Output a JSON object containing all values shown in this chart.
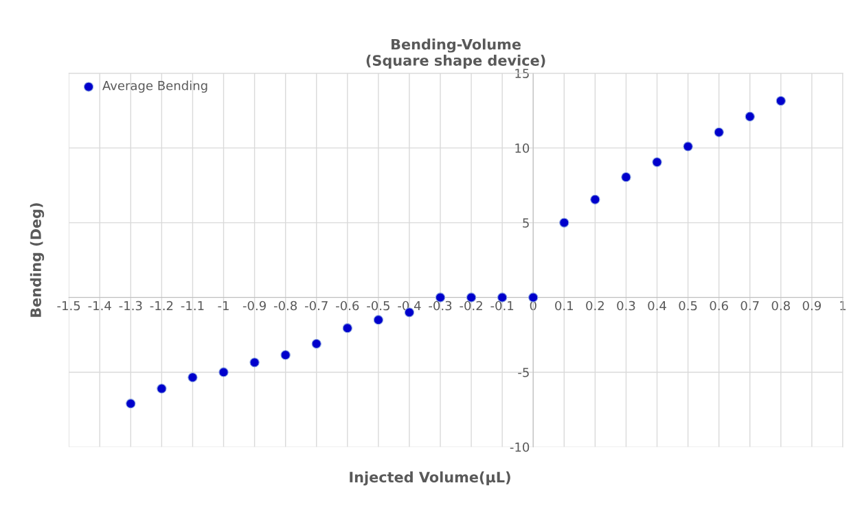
{
  "chart_data": {
    "type": "scatter",
    "title": "Bending-Volume\n(Square shape device)",
    "xlabel": "Injected Volume(µL)",
    "ylabel": "Bending (Deg)",
    "x": [
      -1.3,
      -1.2,
      -1.1,
      -1,
      -0.9,
      -0.8,
      -0.7,
      -0.6,
      -0.5,
      -0.4,
      -0.3,
      -0.2,
      -0.1,
      0,
      0.1,
      0.2,
      0.3,
      0.4,
      0.5,
      0.6,
      0.7,
      0.8
    ],
    "series": [
      {
        "name": "Average Bending",
        "color": "#0000cc",
        "values": [
          -7.1,
          -6.1,
          -5.35,
          -5.0,
          -4.35,
          -3.85,
          -3.1,
          -2.05,
          -1.5,
          -1.0,
          0,
          0,
          0,
          0,
          5.0,
          6.55,
          8.05,
          9.05,
          10.1,
          11.05,
          12.1,
          13.15
        ]
      }
    ],
    "xlim": [
      -1.5,
      1
    ],
    "ylim": [
      -10,
      15
    ],
    "xticks": [
      -1.5,
      -1.4,
      -1.3,
      -1.2,
      -1.1,
      -1,
      -0.9,
      -0.8,
      -0.7,
      -0.6,
      -0.5,
      -0.4,
      -0.3,
      -0.2,
      -0.1,
      0,
      0.1,
      0.2,
      0.3,
      0.4,
      0.5,
      0.6,
      0.7,
      0.8,
      0.9,
      1
    ],
    "yticks": [
      -10,
      -5,
      {
        "value": 0,
        "label": null
      },
      5,
      10,
      15
    ],
    "grid": true,
    "legend": "top left",
    "marker": "circle"
  }
}
